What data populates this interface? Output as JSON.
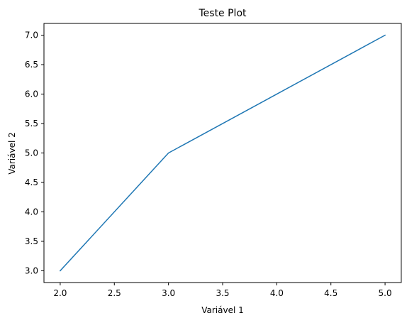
{
  "chart_data": {
    "type": "line",
    "title": "Teste Plot",
    "xlabel": "Variável 1",
    "ylabel": "Variável 2",
    "xlim": [
      1.85,
      5.15
    ],
    "ylim": [
      2.8,
      7.2
    ],
    "x": [
      2,
      3,
      4,
      5
    ],
    "series": [
      {
        "name": "",
        "values": [
          3,
          5,
          6,
          7
        ],
        "color": "#1f77b4"
      }
    ],
    "xticks": [
      2.0,
      2.5,
      3.0,
      3.5,
      4.0,
      4.5,
      5.0
    ],
    "xtick_labels": [
      "2.0",
      "2.5",
      "3.0",
      "3.5",
      "4.0",
      "4.5",
      "5.0"
    ],
    "yticks": [
      3.0,
      3.5,
      4.0,
      4.5,
      5.0,
      5.5,
      6.0,
      6.5,
      7.0
    ],
    "ytick_labels": [
      "3.0",
      "3.5",
      "4.0",
      "4.5",
      "5.0",
      "5.5",
      "6.0",
      "6.5",
      "7.0"
    ],
    "grid": false,
    "legend": "none"
  }
}
